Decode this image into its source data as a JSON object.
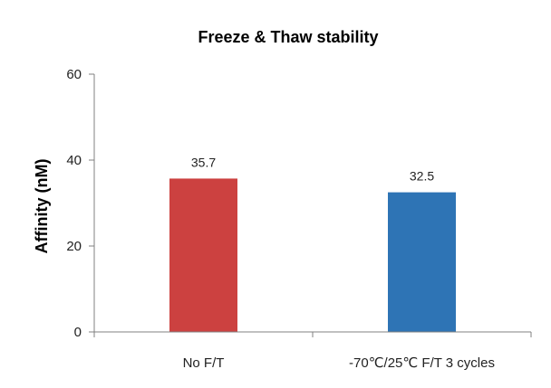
{
  "chart_data": {
    "type": "bar",
    "title": "Freeze & Thaw stability",
    "xlabel": "",
    "ylabel": "Affinity (nM)",
    "categories": [
      "No F/T",
      "-70℃/25℃ F/T 3 cycles"
    ],
    "values": [
      35.7,
      32.5
    ],
    "data_labels": [
      "35.7",
      "32.5"
    ],
    "bar_colors": [
      "#cc4140",
      "#2e74b5"
    ],
    "ylim": [
      0,
      60
    ],
    "yticks": [
      0,
      20,
      40,
      60
    ],
    "ytick_labels": [
      "0",
      "20",
      "40",
      "60"
    ],
    "grid": false,
    "legend": "none"
  }
}
